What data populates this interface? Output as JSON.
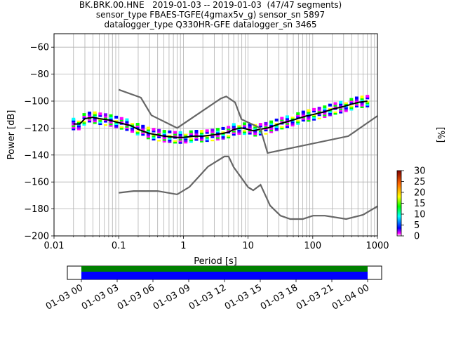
{
  "title_lines": [
    "BK.BRK.00.HNE   2019-01-03 -- 2019-01-03  (47/47 segments)",
    "sensor_type FBAES-TGFE(4gmax5v_g) sensor_sn 5897",
    "datalogger_type Q330HR-GFE datalogger_sn 3465"
  ],
  "chart_data": [
    {
      "type": "heatmap",
      "xlabel": "Period [s]",
      "ylabel": "Power [dB]",
      "xscale": "log",
      "xlim": [
        0.01,
        1000
      ],
      "ylim": [
        -200,
        -50
      ],
      "x_ticks": [
        "0.01",
        "0.1",
        "1",
        "10",
        "100",
        "1000"
      ],
      "y_ticks": [
        "−200",
        "−180",
        "−160",
        "−140",
        "−120",
        "−100",
        "−80",
        "−60"
      ],
      "grid": true,
      "colorbar": {
        "label": "[%]",
        "range": [
          0,
          30
        ],
        "ticks": [
          "0",
          "5",
          "10",
          "15",
          "20",
          "25",
          "30"
        ]
      },
      "series": [
        {
          "role": "mean",
          "color": "#000000",
          "x": [
            0.02,
            0.025,
            0.03,
            0.04,
            0.05,
            0.07,
            0.1,
            0.15,
            0.2,
            0.3,
            0.5,
            0.8,
            1,
            1.5,
            2,
            3,
            4,
            5,
            6,
            8,
            10,
            12,
            15,
            20,
            30,
            50,
            80,
            100,
            150,
            200,
            300,
            500,
            700
          ],
          "y": [
            -117,
            -117,
            -113,
            -112,
            -113,
            -114,
            -116,
            -118,
            -121,
            -124,
            -126,
            -127,
            -127,
            -126,
            -126,
            -125,
            -124,
            -123,
            -121,
            -120,
            -121,
            -122,
            -121,
            -120,
            -117,
            -114,
            -111,
            -110,
            -108,
            -106,
            -104,
            -101,
            -100
          ]
        },
        {
          "role": "NHNM",
          "color": "#666666",
          "x": [
            0.1,
            0.22,
            0.32,
            0.8,
            3.8,
            4.6,
            6.3,
            7.9,
            15.4,
            20,
            354.8,
            1000
          ],
          "y": [
            -91.5,
            -97.4,
            -110.5,
            -120,
            -98,
            -96.5,
            -101,
            -113.5,
            -120,
            -138.5,
            -126,
            -111
          ]
        },
        {
          "role": "NLNM",
          "color": "#666666",
          "x": [
            0.1,
            0.17,
            0.4,
            0.8,
            1.24,
            2.4,
            4.3,
            5,
            6,
            10,
            12,
            15.6,
            21.9,
            31.6,
            45,
            70,
            101,
            154,
            328,
            600,
            1000
          ],
          "y": [
            -168,
            -166.7,
            -166.7,
            -169.2,
            -163.7,
            -148.6,
            -141.1,
            -141.1,
            -149,
            -163.8,
            -166.2,
            -162.1,
            -177.5,
            -185,
            -187.5,
            -187.5,
            -185,
            -185,
            -187.5,
            -184.4,
            -178
          ]
        }
      ]
    },
    {
      "type": "timeline",
      "x_ticks": [
        "01-03 00",
        "01-03 03",
        "01-03 06",
        "01-03 09",
        "01-03 12",
        "01-03 15",
        "01-03 18",
        "01-03 21",
        "01-04 00"
      ],
      "data_coverage": [
        {
          "start": "01-03 00",
          "end": "01-04 00",
          "color": "#008000"
        }
      ],
      "psd_coverage": [
        {
          "start": "01-03 00",
          "end": "01-04 00",
          "color": "#0000ff"
        }
      ]
    }
  ]
}
